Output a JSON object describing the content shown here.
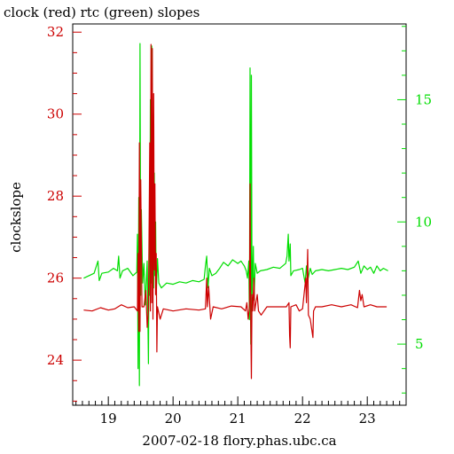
{
  "chart_data": {
    "type": "line",
    "title": "clock (red) rtc (green) slopes",
    "xlabel": "2007-02-18 flory.phas.ubc.ca",
    "ylabel": "clockslope",
    "x_range": [
      18.45,
      23.6
    ],
    "x_ticks": [
      19,
      20,
      21,
      22,
      23
    ],
    "y_left_range": [
      22.9,
      32.2
    ],
    "y_left_ticks": [
      24,
      26,
      28,
      30,
      32
    ],
    "y_right_range": [
      2.5,
      18.1
    ],
    "y_right_ticks": [
      5,
      10,
      15
    ],
    "colors": {
      "left_axis": "#cc0000",
      "right_axis": "#00dd00",
      "frame": "#000000",
      "background": "#ffffff"
    },
    "series": [
      {
        "name": "clock",
        "axis": "left",
        "color": "#cc0000",
        "points": [
          [
            18.62,
            25.22
          ],
          [
            18.75,
            25.2
          ],
          [
            18.88,
            25.28
          ],
          [
            19.0,
            25.22
          ],
          [
            19.1,
            25.25
          ],
          [
            19.2,
            25.35
          ],
          [
            19.3,
            25.28
          ],
          [
            19.4,
            25.3
          ],
          [
            19.45,
            25.2
          ],
          [
            19.46,
            26.6
          ],
          [
            19.47,
            24.7
          ],
          [
            19.48,
            29.3
          ],
          [
            19.49,
            24.7
          ],
          [
            19.5,
            28.4
          ],
          [
            19.52,
            25.3
          ],
          [
            19.55,
            25.3
          ],
          [
            19.58,
            25.7
          ],
          [
            19.6,
            24.8
          ],
          [
            19.62,
            25.2
          ],
          [
            19.64,
            29.3
          ],
          [
            19.65,
            25.2
          ],
          [
            19.66,
            31.7
          ],
          [
            19.67,
            25.4
          ],
          [
            19.68,
            31.6
          ],
          [
            19.69,
            25.0
          ],
          [
            19.7,
            30.5
          ],
          [
            19.71,
            26.2
          ],
          [
            19.72,
            28.3
          ],
          [
            19.73,
            25.6
          ],
          [
            19.74,
            26.6
          ],
          [
            19.75,
            24.2
          ],
          [
            19.76,
            25.3
          ],
          [
            19.8,
            25.0
          ],
          [
            19.85,
            25.25
          ],
          [
            20.0,
            25.2
          ],
          [
            20.2,
            25.25
          ],
          [
            20.4,
            25.22
          ],
          [
            20.5,
            25.25
          ],
          [
            20.52,
            26.0
          ],
          [
            20.53,
            25.3
          ],
          [
            20.55,
            25.8
          ],
          [
            20.58,
            25.0
          ],
          [
            20.62,
            25.3
          ],
          [
            20.75,
            25.25
          ],
          [
            20.9,
            25.32
          ],
          [
            21.05,
            25.3
          ],
          [
            21.12,
            25.2
          ],
          [
            21.14,
            25.4
          ],
          [
            21.16,
            25.0
          ],
          [
            21.18,
            25.3
          ],
          [
            21.19,
            28.3
          ],
          [
            21.2,
            24.9
          ],
          [
            21.21,
            23.55
          ],
          [
            21.22,
            25.6
          ],
          [
            21.23,
            25.2
          ],
          [
            21.25,
            26.0
          ],
          [
            21.26,
            25.2
          ],
          [
            21.3,
            25.6
          ],
          [
            21.32,
            25.2
          ],
          [
            21.36,
            25.1
          ],
          [
            21.45,
            25.3
          ],
          [
            21.6,
            25.3
          ],
          [
            21.75,
            25.3
          ],
          [
            21.79,
            25.4
          ],
          [
            21.8,
            24.6
          ],
          [
            21.81,
            24.3
          ],
          [
            21.82,
            25.3
          ],
          [
            21.9,
            25.35
          ],
          [
            21.95,
            25.2
          ],
          [
            22.0,
            25.25
          ],
          [
            22.05,
            26.0
          ],
          [
            22.06,
            25.4
          ],
          [
            22.08,
            26.7
          ],
          [
            22.09,
            25.1
          ],
          [
            22.12,
            25.0
          ],
          [
            22.16,
            24.55
          ],
          [
            22.17,
            25.2
          ],
          [
            22.2,
            25.3
          ],
          [
            22.3,
            25.3
          ],
          [
            22.45,
            25.35
          ],
          [
            22.6,
            25.3
          ],
          [
            22.75,
            25.35
          ],
          [
            22.85,
            25.28
          ],
          [
            22.88,
            25.7
          ],
          [
            22.9,
            25.45
          ],
          [
            22.92,
            25.6
          ],
          [
            22.95,
            25.3
          ],
          [
            23.05,
            25.35
          ],
          [
            23.15,
            25.3
          ],
          [
            23.3,
            25.3
          ]
        ]
      },
      {
        "name": "rtc",
        "axis": "right",
        "color": "#00dd00",
        "points": [
          [
            18.62,
            7.7
          ],
          [
            18.7,
            7.8
          ],
          [
            18.78,
            7.9
          ],
          [
            18.84,
            8.4
          ],
          [
            18.86,
            7.6
          ],
          [
            18.9,
            7.9
          ],
          [
            19.0,
            7.95
          ],
          [
            19.08,
            8.1
          ],
          [
            19.14,
            8.0
          ],
          [
            19.16,
            8.6
          ],
          [
            19.18,
            7.7
          ],
          [
            19.22,
            8.0
          ],
          [
            19.3,
            8.1
          ],
          [
            19.38,
            7.8
          ],
          [
            19.44,
            7.95
          ],
          [
            19.45,
            9.5
          ],
          [
            19.46,
            4.0
          ],
          [
            19.47,
            11.0
          ],
          [
            19.48,
            3.3
          ],
          [
            19.49,
            17.3
          ],
          [
            19.5,
            7.0
          ],
          [
            19.51,
            10.5
          ],
          [
            19.53,
            7.5
          ],
          [
            19.55,
            8.3
          ],
          [
            19.57,
            6.6
          ],
          [
            19.6,
            8.4
          ],
          [
            19.62,
            4.2
          ],
          [
            19.63,
            9.5
          ],
          [
            19.64,
            7.0
          ],
          [
            19.65,
            15.0
          ],
          [
            19.66,
            7.5
          ],
          [
            19.67,
            17.2
          ],
          [
            19.68,
            8.0
          ],
          [
            19.69,
            13.0
          ],
          [
            19.7,
            7.3
          ],
          [
            19.71,
            12.0
          ],
          [
            19.72,
            7.8
          ],
          [
            19.73,
            10.0
          ],
          [
            19.74,
            7.0
          ],
          [
            19.76,
            8.5
          ],
          [
            19.78,
            7.5
          ],
          [
            19.82,
            7.3
          ],
          [
            19.9,
            7.5
          ],
          [
            20.0,
            7.45
          ],
          [
            20.1,
            7.55
          ],
          [
            20.2,
            7.5
          ],
          [
            20.3,
            7.6
          ],
          [
            20.4,
            7.55
          ],
          [
            20.48,
            7.65
          ],
          [
            20.5,
            8.2
          ],
          [
            20.52,
            8.6
          ],
          [
            20.54,
            7.3
          ],
          [
            20.56,
            8.1
          ],
          [
            20.6,
            7.8
          ],
          [
            20.66,
            7.9
          ],
          [
            20.72,
            8.1
          ],
          [
            20.78,
            8.35
          ],
          [
            20.85,
            8.2
          ],
          [
            20.92,
            8.45
          ],
          [
            21.0,
            8.3
          ],
          [
            21.05,
            8.4
          ],
          [
            21.1,
            8.2
          ],
          [
            21.13,
            8.0
          ],
          [
            21.15,
            7.7
          ],
          [
            21.17,
            8.4
          ],
          [
            21.18,
            6.0
          ],
          [
            21.19,
            16.3
          ],
          [
            21.2,
            5.0
          ],
          [
            21.21,
            16.0
          ],
          [
            21.22,
            7.0
          ],
          [
            21.23,
            7.9
          ],
          [
            21.24,
            9.0
          ],
          [
            21.25,
            6.8
          ],
          [
            21.27,
            8.3
          ],
          [
            21.3,
            7.9
          ],
          [
            21.35,
            8.0
          ],
          [
            21.45,
            8.05
          ],
          [
            21.55,
            8.15
          ],
          [
            21.65,
            8.1
          ],
          [
            21.74,
            8.3
          ],
          [
            21.76,
            8.6
          ],
          [
            21.78,
            9.5
          ],
          [
            21.79,
            8.4
          ],
          [
            21.81,
            9.1
          ],
          [
            21.82,
            7.8
          ],
          [
            21.86,
            8.0
          ],
          [
            21.95,
            8.05
          ],
          [
            22.0,
            8.1
          ],
          [
            22.04,
            7.5
          ],
          [
            22.06,
            8.2
          ],
          [
            22.08,
            7.6
          ],
          [
            22.12,
            8.1
          ],
          [
            22.15,
            7.85
          ],
          [
            22.2,
            8.0
          ],
          [
            22.3,
            8.05
          ],
          [
            22.4,
            8.0
          ],
          [
            22.5,
            8.05
          ],
          [
            22.6,
            8.1
          ],
          [
            22.7,
            8.05
          ],
          [
            22.8,
            8.15
          ],
          [
            22.86,
            8.4
          ],
          [
            22.9,
            7.9
          ],
          [
            22.95,
            8.2
          ],
          [
            23.0,
            8.05
          ],
          [
            23.05,
            8.15
          ],
          [
            23.1,
            7.9
          ],
          [
            23.15,
            8.2
          ],
          [
            23.2,
            8.0
          ],
          [
            23.25,
            8.1
          ],
          [
            23.32,
            8.0
          ]
        ]
      }
    ]
  }
}
